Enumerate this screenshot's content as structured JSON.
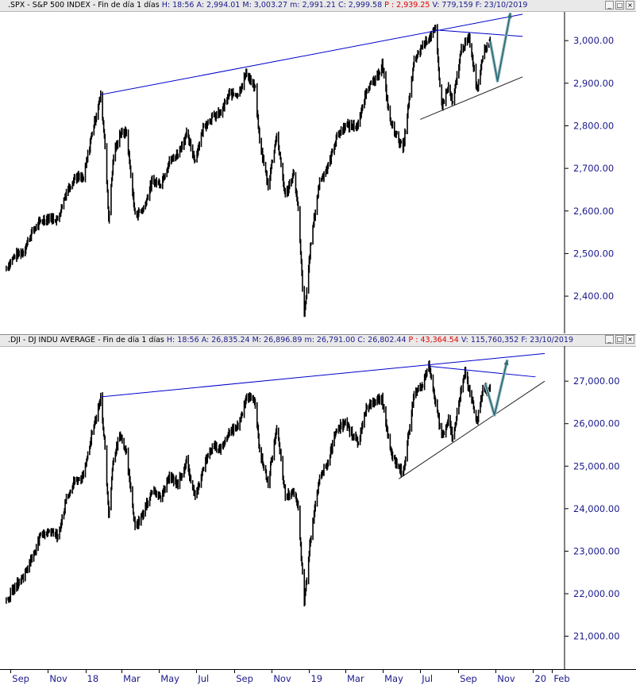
{
  "spx_pane": {
    "title": ".SPX - S&P 500 INDEX - Fin de día 1 días",
    "stats_h": "H: 18:56",
    "stats_a": "A: 2,994.01",
    "stats_m": "M: 3,003.27",
    "stats_min": "m: 2,991.21",
    "stats_c": "C: 2,999.58",
    "stats_p": "P : 2,939.25",
    "stats_v": "V: 779,159",
    "stats_f": "F: 23/10/2019"
  },
  "dji_pane": {
    "title": ".DJI - DJ INDU AVERAGE - Fin de día 1 días",
    "stats_h": "H: 18:56",
    "stats_a": "A: 26,835.24",
    "stats_m": "M: 26,896.89",
    "stats_min": "m: 26,791.00",
    "stats_c": "C: 26,802.44",
    "stats_p": "P : 43,364.54",
    "stats_v": "V: 115,760,352",
    "stats_f": "F: 23/10/2019"
  },
  "window_buttons": [
    "_",
    "□",
    "×"
  ],
  "colors": {
    "price": "#000000",
    "trendline": "#0000cc",
    "support": "#222222",
    "projection": "#2d6b78",
    "axis_text": "#1a1a8c",
    "p_value": "#e00000"
  },
  "x_axis_labels": [
    "Sep",
    "Nov",
    "18",
    "Mar",
    "May",
    "Jul",
    "Sep",
    "Nov",
    "19",
    "Mar",
    "May",
    "Jul",
    "Sep",
    "Nov",
    "20",
    "Feb"
  ],
  "chart_data": [
    {
      "type": "line",
      "series": [
        {
          "name": ".SPX - S&P 500 INDEX",
          "points": [
            [
              "2017-08-25",
              2465
            ],
            [
              "2017-09-08",
              2495
            ],
            [
              "2017-09-22",
              2505
            ],
            [
              "2017-10-06",
              2550
            ],
            [
              "2017-10-20",
              2575
            ],
            [
              "2017-11-03",
              2585
            ],
            [
              "2017-11-17",
              2580
            ],
            [
              "2017-12-01",
              2645
            ],
            [
              "2017-12-15",
              2680
            ],
            [
              "2017-12-29",
              2675
            ],
            [
              "2018-01-12",
              2785
            ],
            [
              "2018-01-26",
              2870
            ],
            [
              "2018-02-02",
              2760
            ],
            [
              "2018-02-08",
              2580
            ],
            [
              "2018-02-16",
              2730
            ],
            [
              "2018-02-26",
              2780
            ],
            [
              "2018-03-09",
              2785
            ],
            [
              "2018-03-23",
              2590
            ],
            [
              "2018-04-06",
              2605
            ],
            [
              "2018-04-20",
              2670
            ],
            [
              "2018-05-04",
              2665
            ],
            [
              "2018-05-18",
              2715
            ],
            [
              "2018-06-01",
              2735
            ],
            [
              "2018-06-15",
              2780
            ],
            [
              "2018-06-29",
              2720
            ],
            [
              "2018-07-13",
              2800
            ],
            [
              "2018-07-27",
              2820
            ],
            [
              "2018-08-10",
              2830
            ],
            [
              "2018-08-24",
              2875
            ],
            [
              "2018-09-07",
              2875
            ],
            [
              "2018-09-21",
              2925
            ],
            [
              "2018-10-05",
              2885
            ],
            [
              "2018-10-12",
              2765
            ],
            [
              "2018-10-26",
              2660
            ],
            [
              "2018-11-09",
              2780
            ],
            [
              "2018-11-23",
              2635
            ],
            [
              "2018-12-07",
              2690
            ],
            [
              "2018-12-14",
              2600
            ],
            [
              "2018-12-24",
              2350
            ],
            [
              "2019-01-04",
              2530
            ],
            [
              "2019-01-18",
              2670
            ],
            [
              "2019-02-01",
              2705
            ],
            [
              "2019-02-15",
              2775
            ],
            [
              "2019-03-01",
              2800
            ],
            [
              "2019-03-22",
              2800
            ],
            [
              "2019-04-05",
              2890
            ],
            [
              "2019-04-19",
              2905
            ],
            [
              "2019-04-30",
              2945
            ],
            [
              "2019-05-13",
              2810
            ],
            [
              "2019-06-03",
              2745
            ],
            [
              "2019-06-21",
              2950
            ],
            [
              "2019-07-05",
              2990
            ],
            [
              "2019-07-26",
              3025
            ],
            [
              "2019-08-05",
              2845
            ],
            [
              "2019-08-16",
              2890
            ],
            [
              "2019-08-23",
              2850
            ],
            [
              "2019-09-06",
              2980
            ],
            [
              "2019-09-19",
              3005
            ],
            [
              "2019-10-02",
              2885
            ],
            [
              "2019-10-11",
              2970
            ],
            [
              "2019-10-23",
              2999.58
            ]
          ]
        }
      ],
      "ylim": [
        2320,
        3060
      ],
      "yticks": [
        2400,
        2500,
        2600,
        2700,
        2800,
        2900,
        3000
      ],
      "ytick_labels": [
        "2,400.00",
        "2,500.00",
        "2,600.00",
        "2,700.00",
        "2,800.00",
        "2,900.00",
        "3,000.00"
      ],
      "xlim": [
        "2017-08-20",
        "2020-02-20"
      ],
      "annotations": {
        "resistance_line": [
          [
            "2018-01-26",
            2873
          ],
          [
            "2019-12-15",
            3062
          ]
        ],
        "top_line": [
          [
            "2019-07-26",
            3025
          ],
          [
            "2019-12-15",
            3010
          ]
        ],
        "support_line": [
          [
            "2019-07-01",
            2815
          ],
          [
            "2019-12-15",
            2915
          ]
        ],
        "projection": [
          [
            "2019-10-23",
            2999
          ],
          [
            "2019-11-04",
            2905
          ],
          [
            "2019-11-25",
            3065
          ]
        ]
      }
    },
    {
      "type": "line",
      "series": [
        {
          "name": ".DJI - DJ INDU AVERAGE",
          "points": [
            [
              "2017-08-25",
              21800
            ],
            [
              "2017-09-08",
              22150
            ],
            [
              "2017-09-22",
              22400
            ],
            [
              "2017-10-06",
              22850
            ],
            [
              "2017-10-20",
              23350
            ],
            [
              "2017-11-03",
              23500
            ],
            [
              "2017-11-17",
              23350
            ],
            [
              "2017-12-01",
              24200
            ],
            [
              "2017-12-15",
              24650
            ],
            [
              "2017-12-29",
              24750
            ],
            [
              "2018-01-12",
              25800
            ],
            [
              "2018-01-26",
              26600
            ],
            [
              "2018-02-02",
              25400
            ],
            [
              "2018-02-08",
              23850
            ],
            [
              "2018-02-16",
              25200
            ],
            [
              "2018-02-26",
              25700
            ],
            [
              "2018-03-09",
              25300
            ],
            [
              "2018-03-23",
              23550
            ],
            [
              "2018-04-06",
              23900
            ],
            [
              "2018-04-20",
              24450
            ],
            [
              "2018-05-04",
              24250
            ],
            [
              "2018-05-18",
              24750
            ],
            [
              "2018-06-01",
              24600
            ],
            [
              "2018-06-15",
              25100
            ],
            [
              "2018-06-29",
              24250
            ],
            [
              "2018-07-13",
              25000
            ],
            [
              "2018-07-27",
              25450
            ],
            [
              "2018-08-10",
              25400
            ],
            [
              "2018-08-24",
              25800
            ],
            [
              "2018-09-07",
              25950
            ],
            [
              "2018-09-21",
              26650
            ],
            [
              "2018-10-05",
              26500
            ],
            [
              "2018-10-12",
              25400
            ],
            [
              "2018-10-26",
              24600
            ],
            [
              "2018-11-09",
              25950
            ],
            [
              "2018-11-23",
              24300
            ],
            [
              "2018-12-07",
              24400
            ],
            [
              "2018-12-14",
              24000
            ],
            [
              "2018-12-24",
              21800
            ],
            [
              "2019-01-04",
              23400
            ],
            [
              "2019-01-18",
              24700
            ],
            [
              "2019-02-01",
              25100
            ],
            [
              "2019-02-15",
              25900
            ],
            [
              "2019-03-01",
              26000
            ],
            [
              "2019-03-22",
              25550
            ],
            [
              "2019-04-05",
              26400
            ],
            [
              "2019-04-19",
              26550
            ],
            [
              "2019-04-30",
              26600
            ],
            [
              "2019-05-13",
              25350
            ],
            [
              "2019-06-03",
              24800
            ],
            [
              "2019-06-21",
              26700
            ],
            [
              "2019-07-05",
              26950
            ],
            [
              "2019-07-15",
              27350
            ],
            [
              "2019-08-05",
              25700
            ],
            [
              "2019-08-16",
              26100
            ],
            [
              "2019-08-23",
              25650
            ],
            [
              "2019-09-06",
              26800
            ],
            [
              "2019-09-12",
              27200
            ],
            [
              "2019-10-02",
              26050
            ],
            [
              "2019-10-11",
              26800
            ],
            [
              "2019-10-23",
              26802.44
            ]
          ]
        }
      ],
      "ylim": [
        20300,
        27750
      ],
      "yticks": [
        21000,
        22000,
        23000,
        24000,
        25000,
        26000,
        27000
      ],
      "ytick_labels": [
        "21,000.00",
        "22,000.00",
        "23,000.00",
        "24,000.00",
        "25,000.00",
        "26,000.00",
        "27,000.00"
      ],
      "xlim": [
        "2017-08-20",
        "2020-02-20"
      ],
      "annotations": {
        "resistance_line": [
          [
            "2018-01-26",
            26630
          ],
          [
            "2020-01-20",
            27650
          ]
        ],
        "top_line": [
          [
            "2019-07-15",
            27350
          ],
          [
            "2020-01-05",
            27100
          ]
        ],
        "support_line": [
          [
            "2019-05-27",
            24700
          ],
          [
            "2020-01-20",
            27000
          ]
        ],
        "projection": [
          [
            "2019-10-15",
            26950
          ],
          [
            "2019-10-30",
            26200
          ],
          [
            "2019-11-20",
            27500
          ]
        ]
      }
    }
  ]
}
